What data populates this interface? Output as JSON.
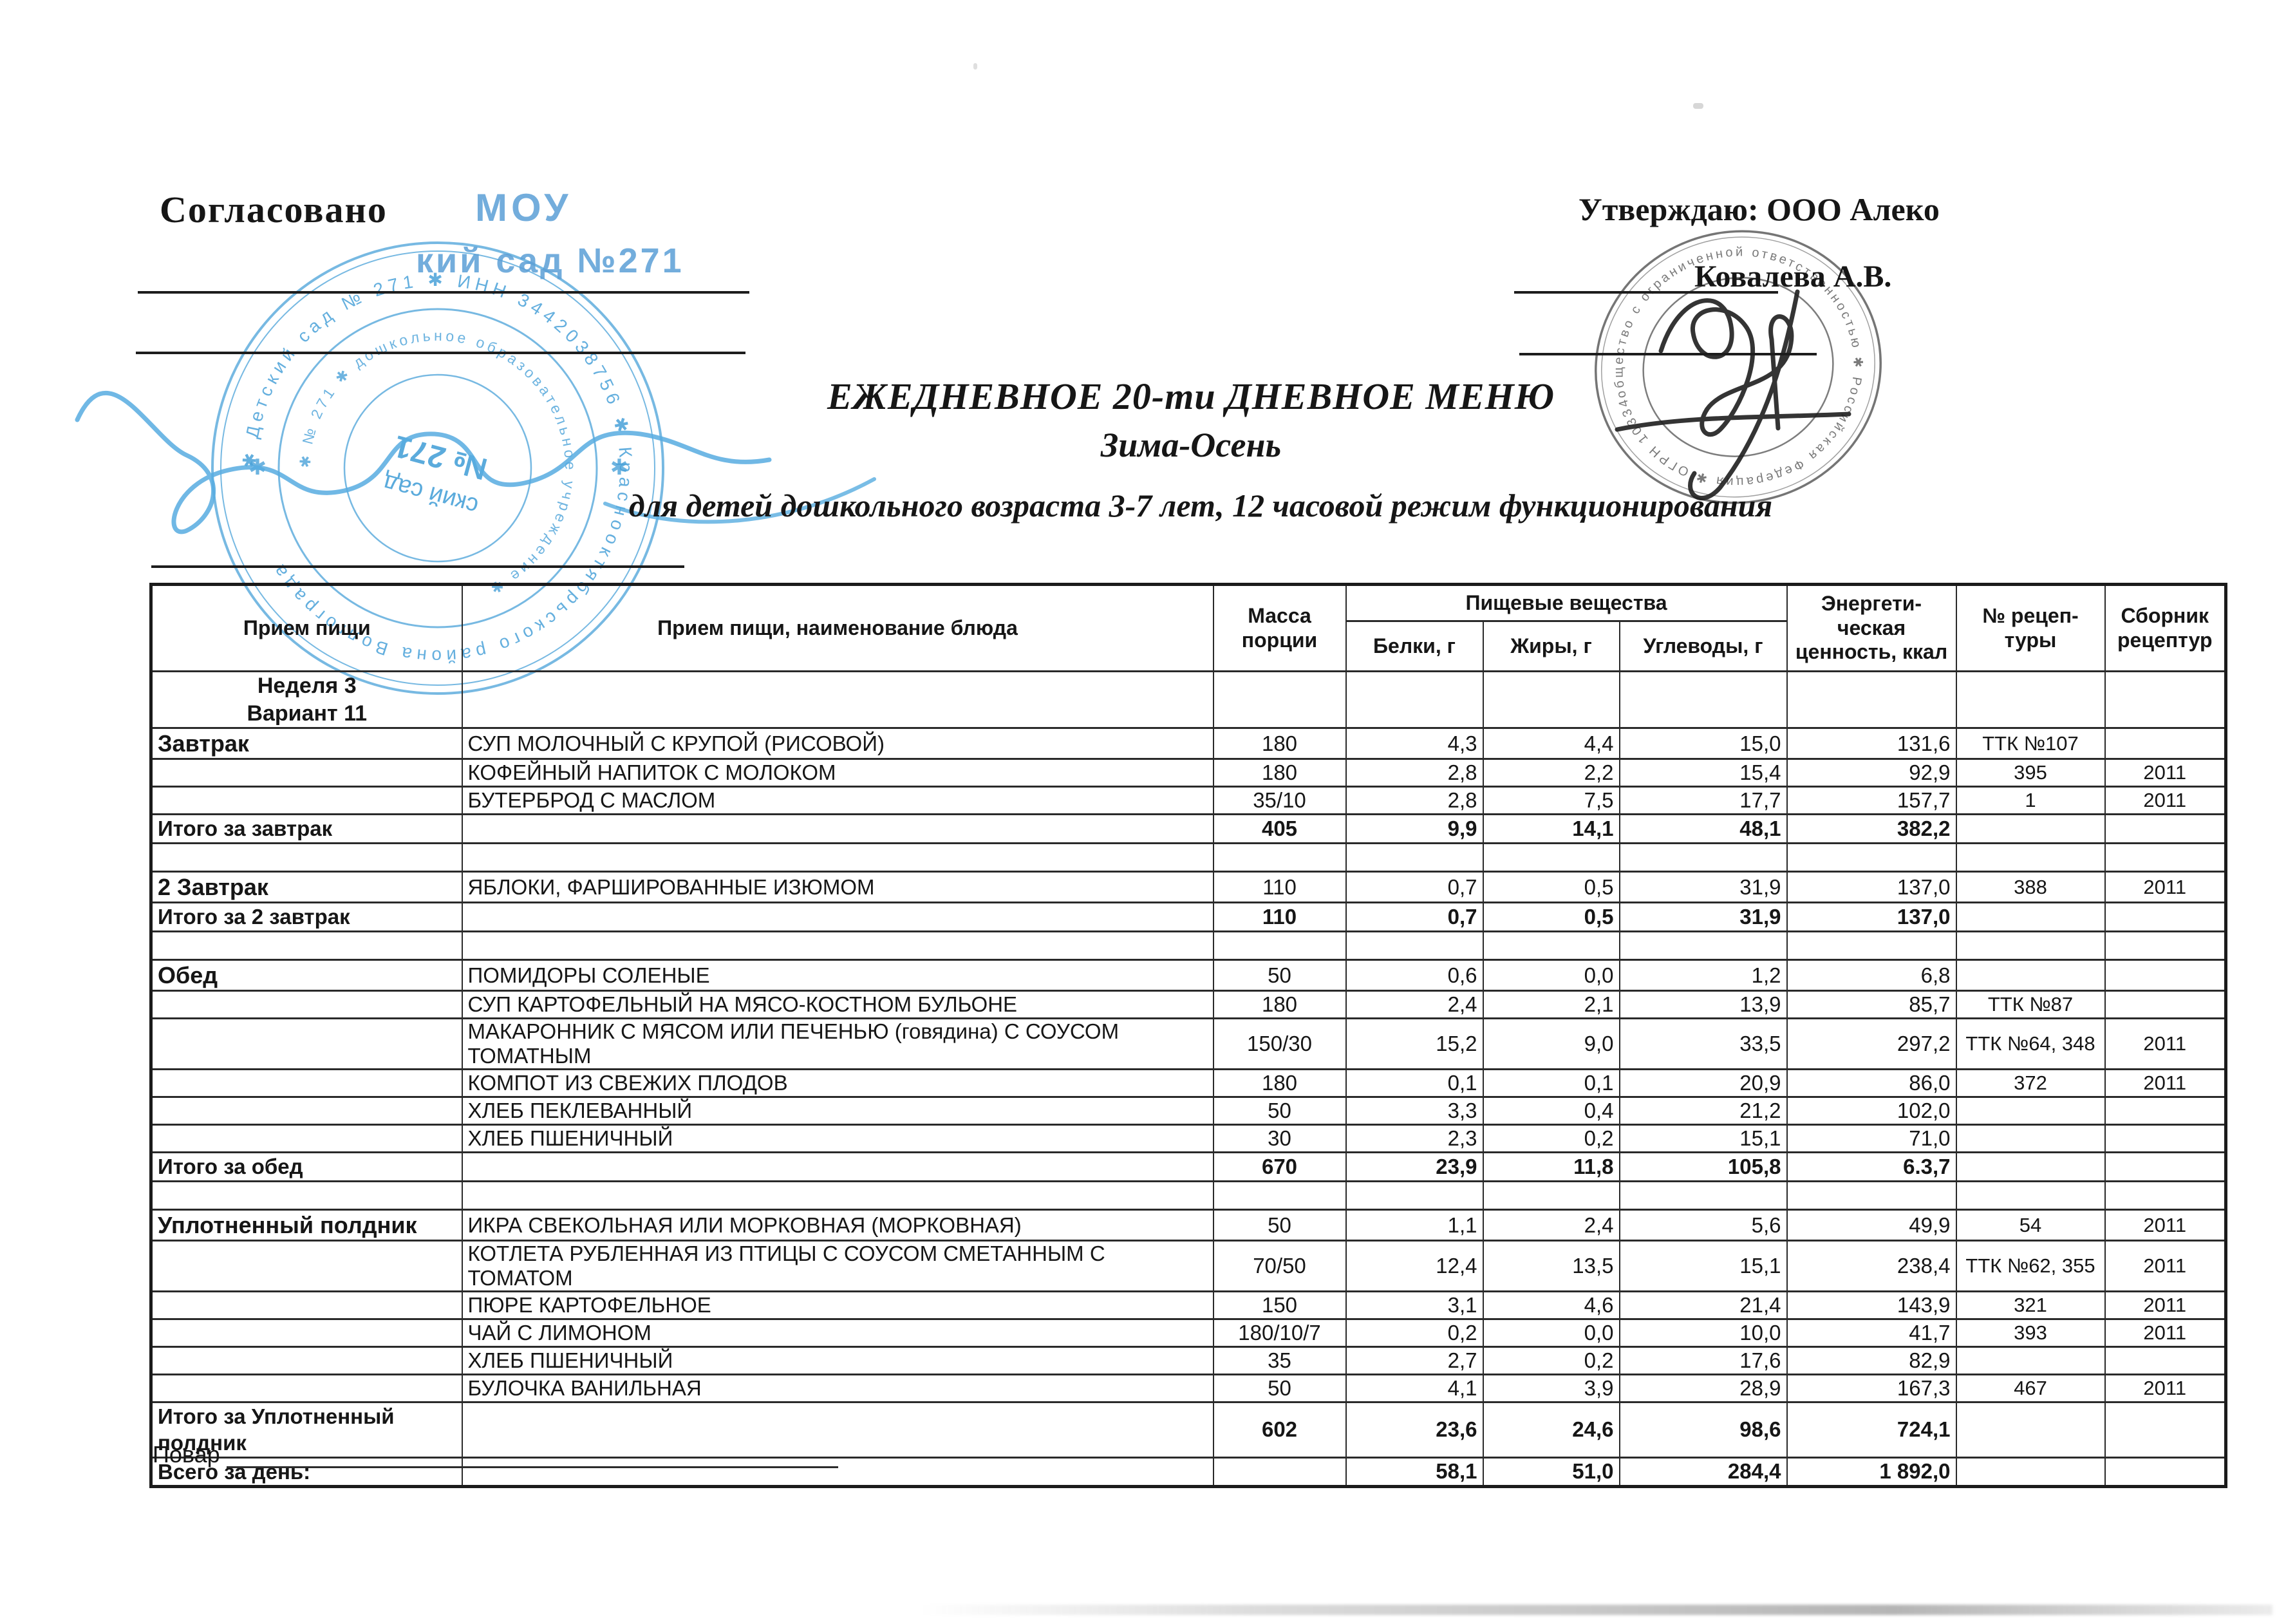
{
  "colors": {
    "stamp_blue": "#4aa2d9",
    "ink_black": "#1a1a1a",
    "stamp_gray": "#525252"
  },
  "approvals": {
    "left_label": "Согласовано",
    "right_label": "Утверждаю: ООО Алеко",
    "right_name": "Ковалева А.В."
  },
  "stamps": {
    "left": {
      "typed_line1": "МОУ",
      "typed_line2": "кий сад  №271",
      "ring_outer": "✱ Детский сад № 271 ✱ ИНН 3442038756 ✱ Краснооктябрьского района Волгограда",
      "ring_inner": "✱ № 271 ✱ дошкольное образовательное учреждение ✱",
      "center_line1": "ский сад",
      "center_line2": "№ 271"
    },
    "right": {
      "ring": "общество с ограниченной ответственностью ✱ Российская Федерация ✱ ОГРН 1033400263920 ✱"
    }
  },
  "title": {
    "line1": "ЕЖЕДНЕВНОЕ 20-ти ДНЕВНОЕ МЕНЮ",
    "line2": "Зима-Осень",
    "line3": "для детей дошкольного возраста 3-7 лет, 12 часовой режим функционирования"
  },
  "table": {
    "headers": {
      "meal": "Прием пищи",
      "dish": "Прием пищи, наименование блюда",
      "mass": "Масса\nпорции",
      "nutrients": "Пищевые вещества",
      "protein": "Белки, г",
      "fat": "Жиры, г",
      "carbs": "Углеводы, г",
      "energy": "Энергети-ческая\nценность, ккал",
      "recipe": "№ рецеп-\nтуры",
      "source": "Сборник\nрецептур"
    },
    "rows": [
      {
        "kind": "week",
        "label": "Неделя 3\nВариант 11"
      },
      {
        "kind": "dish",
        "label": "Завтрак",
        "dish": "СУП МОЛОЧНЫЙ С КРУПОЙ (РИСОВОЙ)",
        "mass": "180",
        "protein": "4,3",
        "fat": "4,4",
        "carbs": "15,0",
        "kcal": "131,6",
        "recipe": "ТТК №107",
        "source": ""
      },
      {
        "kind": "dish",
        "dish": "КОФЕЙНЫЙ НАПИТОК С МОЛОКОМ",
        "mass": "180",
        "protein": "2,8",
        "fat": "2,2",
        "carbs": "15,4",
        "kcal": "92,9",
        "recipe": "395",
        "source": "2011"
      },
      {
        "kind": "dish",
        "dish": "БУТЕРБРОД С МАСЛОМ",
        "mass": "35/10",
        "protein": "2,8",
        "fat": "7,5",
        "carbs": "17,7",
        "kcal": "157,7",
        "recipe": "1",
        "source": "2011"
      },
      {
        "kind": "total",
        "label": "Итого за завтрак",
        "mass": "405",
        "protein": "9,9",
        "fat": "14,1",
        "carbs": "48,1",
        "kcal": "382,2"
      },
      {
        "kind": "spacer"
      },
      {
        "kind": "dish",
        "label": "2 Завтрак",
        "dish": "ЯБЛОКИ, ФАРШИРОВАННЫЕ ИЗЮМОМ",
        "mass": "110",
        "protein": "0,7",
        "fat": "0,5",
        "carbs": "31,9",
        "kcal": "137,0",
        "recipe": "388",
        "source": "2011"
      },
      {
        "kind": "total",
        "label": "Итого за 2 завтрак",
        "mass": "110",
        "protein": "0,7",
        "fat": "0,5",
        "carbs": "31,9",
        "kcal": "137,0"
      },
      {
        "kind": "spacer"
      },
      {
        "kind": "dish",
        "label": "Обед",
        "dish": "ПОМИДОРЫ СОЛЕНЫЕ",
        "mass": "50",
        "protein": "0,6",
        "fat": "0,0",
        "carbs": "1,2",
        "kcal": "6,8"
      },
      {
        "kind": "dish",
        "dish": "СУП КАРТОФЕЛЬНЫЙ НА МЯСО-КОСТНОМ БУЛЬОНЕ",
        "mass": "180",
        "protein": "2,4",
        "fat": "2,1",
        "carbs": "13,9",
        "kcal": "85,7",
        "recipe": "ТТК №87"
      },
      {
        "kind": "dish",
        "dish": "МАКАРОННИК С МЯСОМ ИЛИ ПЕЧЕНЬЮ (говядина) С СОУСОМ ТОМАТНЫМ",
        "mass": "150/30",
        "protein": "15,2",
        "fat": "9,0",
        "carbs": "33,5",
        "kcal": "297,2",
        "recipe": "ТТК №64, 348",
        "source": "2011"
      },
      {
        "kind": "dish",
        "dish": "КОМПОТ ИЗ СВЕЖИХ ПЛОДОВ",
        "mass": "180",
        "protein": "0,1",
        "fat": "0,1",
        "carbs": "20,9",
        "kcal": "86,0",
        "recipe": "372",
        "source": "2011"
      },
      {
        "kind": "dish",
        "dish": "ХЛЕБ ПЕКЛЕВАННЫЙ",
        "mass": "50",
        "protein": "3,3",
        "fat": "0,4",
        "carbs": "21,2",
        "kcal": "102,0"
      },
      {
        "kind": "dish",
        "dish": "ХЛЕБ ПШЕНИЧНЫЙ",
        "mass": "30",
        "protein": "2,3",
        "fat": "0,2",
        "carbs": "15,1",
        "kcal": "71,0"
      },
      {
        "kind": "total",
        "label": "Итого за обед",
        "mass": "670",
        "protein": "23,9",
        "fat": "11,8",
        "carbs": "105,8",
        "kcal": "6.3,7"
      },
      {
        "kind": "spacer"
      },
      {
        "kind": "dish",
        "label": "Уплотненный полдник",
        "dish": "ИКРА СВЕКОЛЬНАЯ ИЛИ МОРКОВНАЯ (МОРКОВНАЯ)",
        "mass": "50",
        "protein": "1,1",
        "fat": "2,4",
        "carbs": "5,6",
        "kcal": "49,9",
        "recipe": "54",
        "source": "2011"
      },
      {
        "kind": "dish",
        "tall": true,
        "dish": "КОТЛЕТА РУБЛЕННАЯ ИЗ ПТИЦЫ С СОУСОМ СМЕТАННЫМ С ТОМАТОМ",
        "mass": "70/50",
        "protein": "12,4",
        "fat": "13,5",
        "carbs": "15,1",
        "kcal": "238,4",
        "recipe": "ТТК №62, 355",
        "source": "2011"
      },
      {
        "kind": "dish",
        "dish": "ПЮРЕ КАРТОФЕЛЬНОЕ",
        "mass": "150",
        "protein": "3,1",
        "fat": "4,6",
        "carbs": "21,4",
        "kcal": "143,9",
        "recipe": "321",
        "source": "2011"
      },
      {
        "kind": "dish",
        "dish": "ЧАЙ С ЛИМОНОМ",
        "mass": "180/10/7",
        "protein": "0,2",
        "fat": "0,0",
        "carbs": "10,0",
        "kcal": "41,7",
        "recipe": "393",
        "source": "2011"
      },
      {
        "kind": "dish",
        "dish": "ХЛЕБ ПШЕНИЧНЫЙ",
        "mass": "35",
        "protein": "2,7",
        "fat": "0,2",
        "carbs": "17,6",
        "kcal": "82,9"
      },
      {
        "kind": "dish",
        "dish": "БУЛОЧКА ВАНИЛЬНАЯ",
        "mass": "50",
        "protein": "4,1",
        "fat": "3,9",
        "carbs": "28,9",
        "kcal": "167,3",
        "recipe": "467",
        "source": "2011"
      },
      {
        "kind": "total",
        "tall2": true,
        "label": "Итого за Уплотненный\nполдник",
        "mass": "602",
        "protein": "23,6",
        "fat": "24,6",
        "carbs": "98,6",
        "kcal": "724,1"
      },
      {
        "kind": "total",
        "label": "Всего за день:",
        "protein": "58,1",
        "fat": "51,0",
        "carbs": "284,4",
        "kcal": "1 892,0"
      }
    ]
  },
  "footer": {
    "cook_label": "Повар"
  }
}
